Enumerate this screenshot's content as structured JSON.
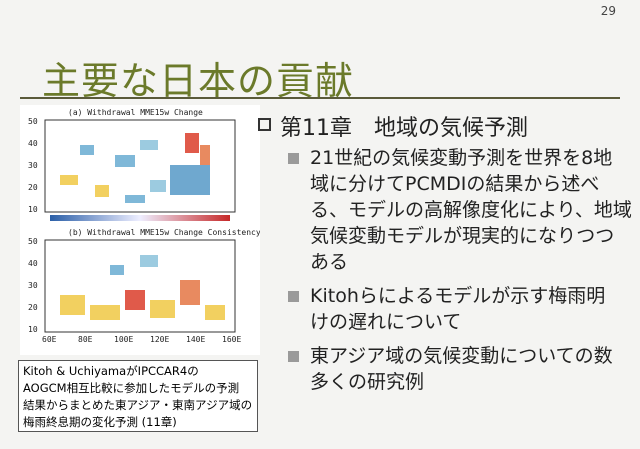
{
  "page_number": "29",
  "title": "主要な日本の貢献",
  "figure": {
    "panel_a": {
      "title": "(a) Withdrawal MME15w Change",
      "yticks": [
        "50",
        "40",
        "30",
        "20",
        "10"
      ]
    },
    "panel_b": {
      "title": "(b) Withdrawal MME15w Change Consistency",
      "yticks": [
        "50",
        "40",
        "30",
        "20",
        "10"
      ],
      "xticks": [
        "60E",
        "80E",
        "100E",
        "120E",
        "140E",
        "160E"
      ]
    }
  },
  "caption": [
    "Kitoh & UchiyamaがIPCCAR4の",
    "AOGCM相互比較に参加したモデルの予測",
    "結果からまとめた東アジア・東南アジア域の",
    "梅雨終息期の変化予測 (11章)"
  ],
  "heading": "第11章　地域の気候予測",
  "bullets": [
    [
      "21世紀の気候変動予測を世界を8地",
      "域に分けてPCMDIの結果から述べ",
      "る、モデルの高解像度化により、地域",
      "気候変動モデルが現実的になりつつ",
      "ある"
    ],
    [
      "Kitohらによるモデルが示す梅雨明",
      "けの遅れについて"
    ],
    [
      "東アジア域の気候変動についての数",
      "多くの研究例"
    ]
  ]
}
